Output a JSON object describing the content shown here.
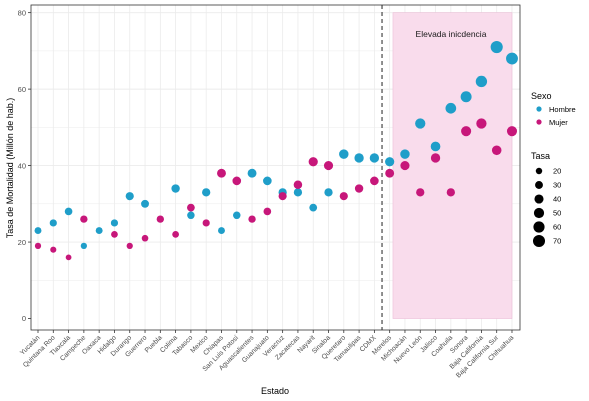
{
  "chart_data": {
    "type": "scatter",
    "xlabel": "Estado",
    "ylabel": "Tasa de Mortalidad   (Millón de hab.)",
    "ylim": [
      -3,
      82
    ],
    "yticks": [
      0,
      20,
      40,
      60,
      80
    ],
    "grid": true,
    "categories": [
      "Yucatán",
      "Quintana Roo",
      "Tlaxcala",
      "Campeche",
      "Oaxaca",
      "Hidalgo",
      "Durango",
      "Guerrero",
      "Puebla",
      "Colima",
      "Tabasco",
      "Mexico",
      "Chiapas",
      "San Luis Potosí",
      "Aguascalientes",
      "Guanajuato",
      "Veracruz",
      "Zacatecas",
      "Nayarit",
      "Sinaloa",
      "Queretaro",
      "Tamaulipas",
      "CDMX",
      "Morelos",
      "Michoacán",
      "Nuevo León",
      "Jalisco",
      "Coahuila",
      "Sonora",
      "Baja California",
      "Baja California Sur",
      "Chihuahua"
    ],
    "series": [
      {
        "name": "Hombre",
        "color": "#1f9ec9",
        "values": [
          23,
          25,
          28,
          19,
          23,
          25,
          32,
          30,
          null,
          34,
          27,
          33,
          23,
          27,
          38,
          36,
          33,
          33,
          29,
          33,
          43,
          42,
          42,
          41,
          43,
          51,
          45,
          55,
          58,
          62,
          71,
          68
        ]
      },
      {
        "name": "Mujer",
        "color": "#c7177a",
        "values": [
          19,
          18,
          16,
          26,
          null,
          22,
          19,
          21,
          26,
          22,
          29,
          25,
          38,
          36,
          26,
          28,
          32,
          35,
          41,
          40,
          32,
          34,
          36,
          38,
          40,
          33,
          42,
          33,
          49,
          51,
          44,
          49
        ]
      }
    ],
    "size_legend": {
      "title": "Tasa",
      "values": [
        20,
        30,
        40,
        50,
        60,
        70
      ]
    },
    "color_legend": {
      "title": "Sexo",
      "entries": [
        "Hombre",
        "Mujer"
      ]
    },
    "annotation": {
      "text": "Elevada inicdencia",
      "from_category": "Michoacán",
      "to_category": "Chihuahua",
      "y_from": 0,
      "y_to": 80
    },
    "vline_after": "CDMX"
  },
  "colors": {
    "hombre": "#1f9ec9",
    "mujer": "#c7177a",
    "shade": "#f9dcec",
    "grid": "#ebebeb"
  }
}
